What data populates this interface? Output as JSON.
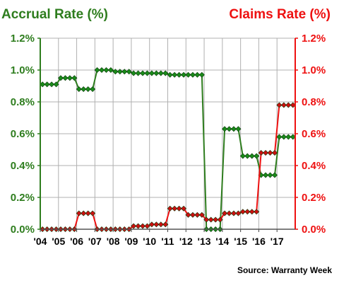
{
  "chart_data": {
    "type": "line",
    "title_left": "Accrual Rate (%)",
    "title_right": "Claims Rate (%)",
    "source": "Source: Warranty Week",
    "y_ticks": [
      "0.0%",
      "0.2%",
      "0.4%",
      "0.6%",
      "0.8%",
      "1.0%",
      "1.2%"
    ],
    "ylim": [
      0,
      1.2
    ],
    "x_ticks": [
      "'04",
      "'05",
      "'06",
      "'07",
      "'08",
      "'09",
      "'10",
      "'11",
      "'12",
      "'13",
      "'14",
      "'15",
      "'16",
      "'17"
    ],
    "grid": true,
    "colors": {
      "accrual": "#2e7d1e",
      "accrual_marker": "#1a8a1a",
      "claims": "#ee1111",
      "claims_marker": "#cc1010",
      "grid": "#b0b0b0"
    },
    "series": [
      {
        "id": "accrual",
        "values": [
          0.91,
          0.91,
          0.91,
          0.91,
          0.95,
          0.95,
          0.95,
          0.95,
          0.88,
          0.88,
          0.88,
          0.88,
          1.0,
          1.0,
          1.0,
          1.0,
          0.99,
          0.99,
          0.99,
          0.99,
          0.98,
          0.98,
          0.98,
          0.98,
          0.98,
          0.98,
          0.98,
          0.98,
          0.97,
          0.97,
          0.97,
          0.97,
          0.97,
          0.97,
          0.97,
          0.97,
          0.0,
          0.0,
          0.0,
          0.0,
          0.63,
          0.63,
          0.63,
          0.63,
          0.46,
          0.46,
          0.46,
          0.46,
          0.34,
          0.34,
          0.34,
          0.34,
          0.58,
          0.58,
          0.58,
          0.58
        ]
      },
      {
        "id": "claims",
        "values": [
          0.0,
          0.0,
          0.0,
          0.0,
          0.0,
          0.0,
          0.0,
          0.0,
          0.1,
          0.1,
          0.1,
          0.1,
          0.0,
          0.0,
          0.0,
          0.0,
          0.0,
          0.0,
          0.0,
          0.0,
          0.02,
          0.02,
          0.02,
          0.02,
          0.03,
          0.03,
          0.03,
          0.03,
          0.13,
          0.13,
          0.13,
          0.13,
          0.09,
          0.09,
          0.09,
          0.09,
          0.06,
          0.06,
          0.06,
          0.06,
          0.1,
          0.1,
          0.1,
          0.1,
          0.11,
          0.11,
          0.11,
          0.11,
          0.48,
          0.48,
          0.48,
          0.48,
          0.78,
          0.78,
          0.78,
          0.78
        ]
      }
    ]
  }
}
